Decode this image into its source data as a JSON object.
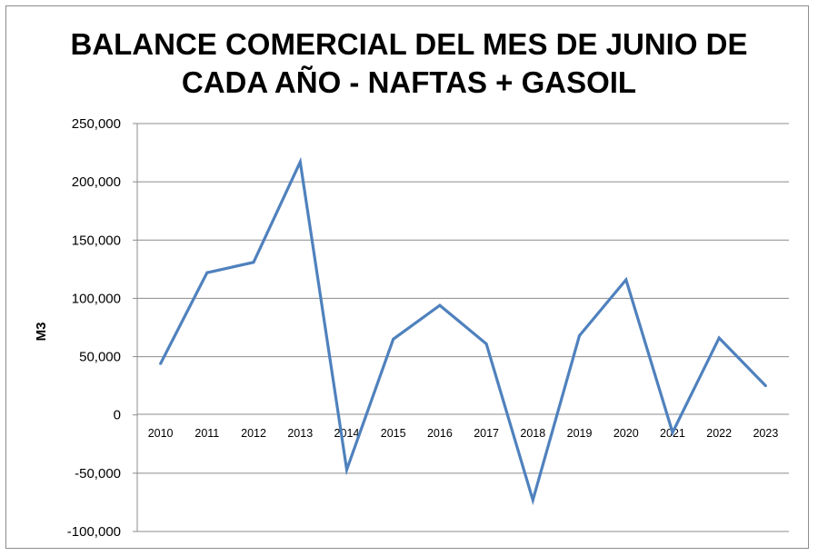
{
  "chart_data": {
    "type": "line",
    "title_line1": "BALANCE COMERCIAL DEL MES DE JUNIO DE",
    "title_line2": "CADA AÑO - NAFTAS + GASOIL",
    "xlabel": "",
    "ylabel": "M3",
    "ylim": [
      -100000,
      250000
    ],
    "yticks": [
      250000,
      200000,
      150000,
      100000,
      50000,
      0,
      -50000,
      -100000
    ],
    "ytick_labels": [
      "250,000",
      "200,000",
      "150,000",
      "100,000",
      "50,000",
      "0",
      "-50,000",
      "-100,000"
    ],
    "categories": [
      "2010",
      "2011",
      "2012",
      "2013",
      "2014",
      "2015",
      "2016",
      "2017",
      "2018",
      "2019",
      "2020",
      "2021",
      "2022",
      "2023"
    ],
    "series": [
      {
        "values": [
          44000,
          122000,
          131000,
          217000,
          -47000,
          65000,
          94000,
          61000,
          -73000,
          68000,
          116000,
          -15000,
          66000,
          25000
        ],
        "color": "#4f81bd"
      }
    ],
    "grid": true,
    "legend": false
  }
}
